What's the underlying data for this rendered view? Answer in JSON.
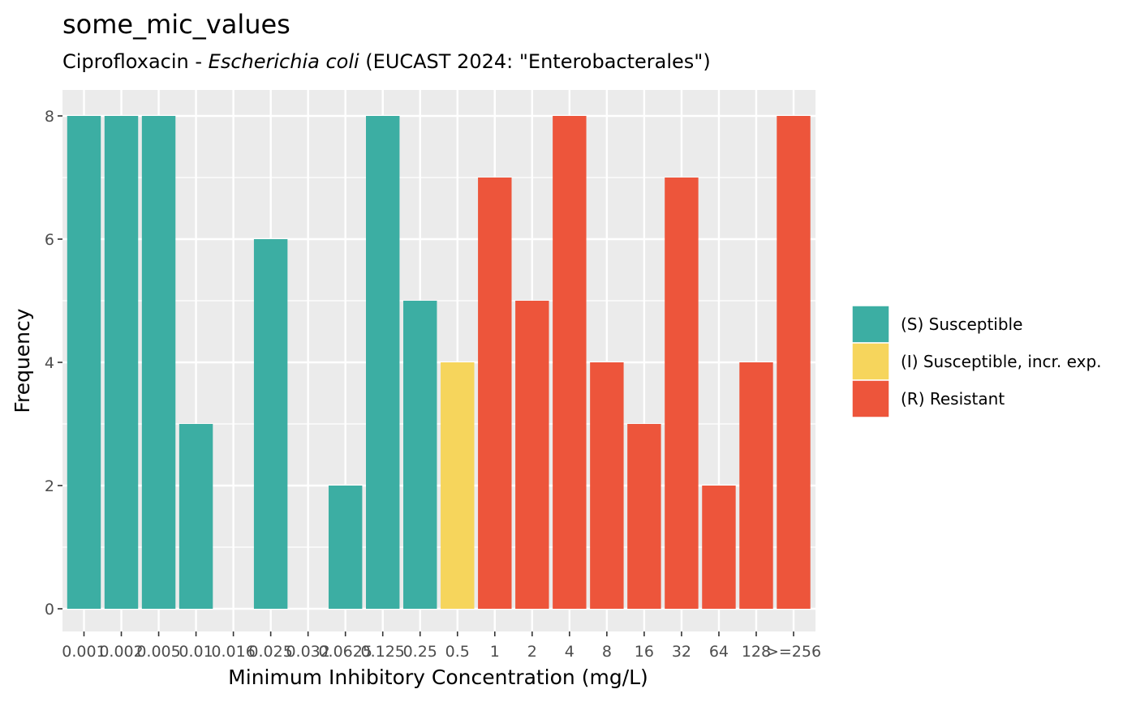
{
  "chart_data": {
    "type": "bar",
    "title": "some_mic_values",
    "subtitle": {
      "before": "Ciprofloxacin - ",
      "organism": "Escherichia coli",
      "after": " (EUCAST 2024: \"Enterobacterales\")"
    },
    "xlabel": "Minimum Inhibitory Concentration (mg/L)",
    "ylabel": "Frequency",
    "ylim": [
      0,
      8
    ],
    "yticks": [
      0,
      2,
      4,
      6,
      8
    ],
    "categories": [
      "0.001",
      "0.002",
      "0.005",
      "0.01",
      "0.016",
      "0.025",
      "0.032",
      "0.0625",
      "0.125",
      "0.25",
      "0.5",
      "1",
      "2",
      "4",
      "8",
      "16",
      "32",
      "64",
      "128",
      ">=256"
    ],
    "values": [
      8,
      8,
      8,
      3,
      0,
      6,
      0,
      2,
      8,
      5,
      4,
      7,
      5,
      8,
      4,
      3,
      7,
      2,
      4,
      8
    ],
    "interpretation": [
      "S",
      "S",
      "S",
      "S",
      "S",
      "S",
      "S",
      "S",
      "S",
      "S",
      "I",
      "R",
      "R",
      "R",
      "R",
      "R",
      "R",
      "R",
      "R",
      "R"
    ],
    "legend": {
      "position": "right",
      "entries": [
        {
          "key": "S",
          "label": "(S) Susceptible",
          "color": "#3CAEA3"
        },
        {
          "key": "I",
          "label": "(I) Susceptible, incr. exp.",
          "color": "#F6D55C"
        },
        {
          "key": "R",
          "label": "(R) Resistant",
          "color": "#ED553B"
        }
      ]
    },
    "grid": true,
    "panel_background": "#EBEBEB"
  }
}
